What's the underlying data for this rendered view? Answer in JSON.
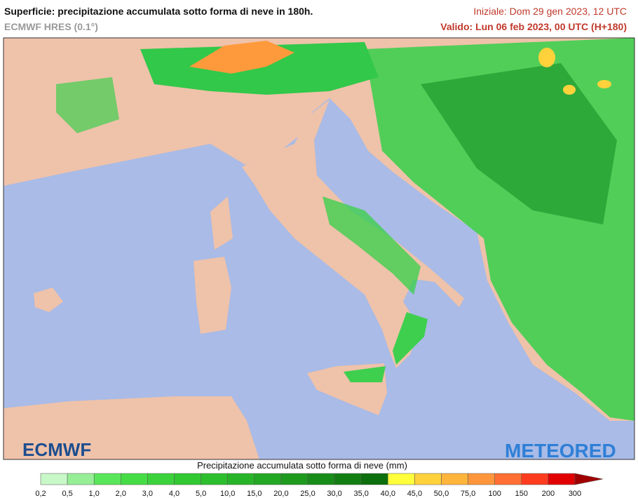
{
  "header": {
    "title": "Superficie: precipitazione accumulata sotto forma di neve in 180h.",
    "subtitle": "ECMWF HRES (0.1°)",
    "initial": "Iniziale: Dom 29 gen 2023, 12 UTC",
    "valid": "Valido: Lun 06 feb 2023, 00 UTC (H+180)"
  },
  "logos": {
    "left": "ECMWF",
    "right": "METEORED"
  },
  "legend": {
    "title": "Precipitazione accumulata sotto forma di neve (mm)",
    "labels": [
      "0,2",
      "0,5",
      "1,0",
      "2,0",
      "3,0",
      "4,0",
      "5,0",
      "10,0",
      "15,0",
      "20,0",
      "25,0",
      "30,0",
      "35,0",
      "40,0",
      "45,0",
      "50,0",
      "75,0",
      "100",
      "150",
      "200",
      "300"
    ],
    "colors": [
      "#c8f7c8",
      "#96ee96",
      "#5ae65a",
      "#46dc46",
      "#3cd23c",
      "#32c832",
      "#2dbe2d",
      "#28b428",
      "#23a823",
      "#1e9a1e",
      "#188c18",
      "#127e12",
      "#0c6e0c",
      "#ffff3c",
      "#ffd23c",
      "#ffb43c",
      "#ff963c",
      "#ff6e32",
      "#ff3c1e",
      "#e10000",
      "#a00000"
    ]
  }
}
